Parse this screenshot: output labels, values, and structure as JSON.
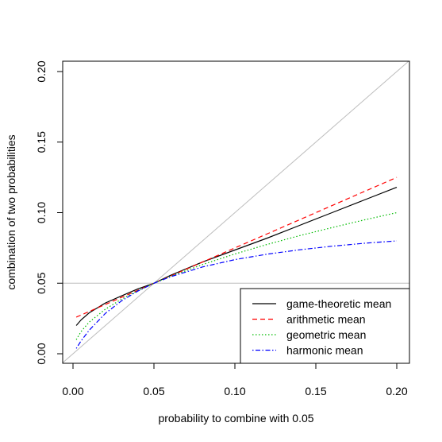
{
  "chart_data": {
    "type": "line",
    "xlabel": "probability to combine with 0.05",
    "ylabel": "combination of two probabilities",
    "xlim": [
      0.0,
      0.2
    ],
    "ylim": [
      0.0,
      0.2
    ],
    "x_ticks": [
      "0.00",
      "0.05",
      "0.10",
      "0.15",
      "0.20"
    ],
    "y_ticks": [
      "0.00",
      "0.05",
      "0.10",
      "0.15",
      "0.20"
    ],
    "legend_position": "bottom-right",
    "reference_lines": [
      {
        "kind": "diagonal",
        "color": "#bebebe"
      },
      {
        "kind": "horizontal",
        "y": 0.05,
        "color": "#bebebe"
      }
    ],
    "series": [
      {
        "name": "game-theoretic mean",
        "color": "#000000",
        "dash": "solid",
        "x": [
          0.002,
          0.005,
          0.01,
          0.02,
          0.03,
          0.04,
          0.05,
          0.06,
          0.08,
          0.1,
          0.12,
          0.14,
          0.16,
          0.18,
          0.2
        ],
        "y": [
          0.02,
          0.024,
          0.029,
          0.036,
          0.041,
          0.046,
          0.05,
          0.0555,
          0.065,
          0.0735,
          0.082,
          0.091,
          0.1,
          0.109,
          0.118
        ]
      },
      {
        "name": "arithmetic mean",
        "color": "#ff0000",
        "dash": "dashed",
        "x": [
          0.002,
          0.2
        ],
        "y": [
          0.026,
          0.125
        ]
      },
      {
        "name": "geometric mean",
        "color": "#00bb00",
        "dash": "dotted",
        "x": [
          0.002,
          0.005,
          0.01,
          0.02,
          0.03,
          0.04,
          0.05,
          0.06,
          0.08,
          0.1,
          0.12,
          0.14,
          0.16,
          0.18,
          0.2
        ],
        "y": [
          0.01,
          0.0158,
          0.0224,
          0.0316,
          0.0387,
          0.0447,
          0.05,
          0.0548,
          0.0632,
          0.0707,
          0.0775,
          0.0837,
          0.0894,
          0.0949,
          0.1
        ]
      },
      {
        "name": "harmonic mean",
        "color": "#0000ff",
        "dash": "dashdot",
        "x": [
          0.002,
          0.005,
          0.01,
          0.02,
          0.03,
          0.04,
          0.05,
          0.06,
          0.08,
          0.1,
          0.12,
          0.14,
          0.16,
          0.18,
          0.2
        ],
        "y": [
          0.0038,
          0.0091,
          0.0167,
          0.0286,
          0.0375,
          0.0444,
          0.05,
          0.0545,
          0.0615,
          0.0667,
          0.0706,
          0.0737,
          0.0762,
          0.0783,
          0.08
        ]
      }
    ]
  }
}
